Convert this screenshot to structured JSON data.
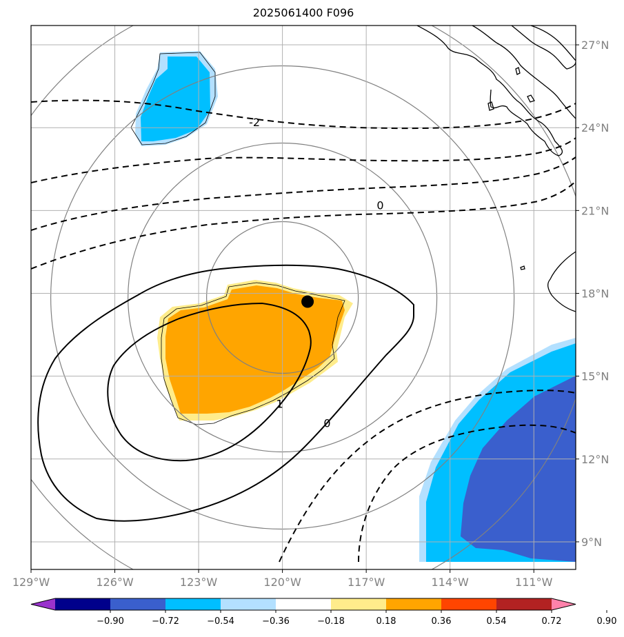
{
  "title": "2025061400 F096",
  "colors": {
    "light_blue": "#b3e0ff",
    "cyan": "#00bfff",
    "royal_blue": "#3a5fcd",
    "light_yellow": "#ffec8b",
    "orange": "#ffa500",
    "range_ring": "#808080",
    "grid": "#b0b0b0",
    "coast": "#000000"
  },
  "map": {
    "lon_range": [
      -129,
      -109.5
    ],
    "lat_range": [
      8,
      27.7
    ],
    "lon_ticks": [
      {
        "value": -129,
        "label": "129°W"
      },
      {
        "value": -126,
        "label": "126°W"
      },
      {
        "value": -123,
        "label": "123°W"
      },
      {
        "value": -120,
        "label": "120°W"
      },
      {
        "value": -117,
        "label": "117°W"
      },
      {
        "value": -114,
        "label": "114°W"
      },
      {
        "value": -111,
        "label": "111°W"
      }
    ],
    "lat_ticks": [
      {
        "value": 9,
        "label": "9°N"
      },
      {
        "value": 12,
        "label": "12°N"
      },
      {
        "value": 15,
        "label": "15°N"
      },
      {
        "value": 18,
        "label": "18°N"
      },
      {
        "value": 21,
        "label": "21°N"
      },
      {
        "value": 24,
        "label": "24°N"
      },
      {
        "value": 27,
        "label": "27°N"
      }
    ],
    "storm_center": {
      "lon": -119.1,
      "lat": 17.7
    },
    "contour_labels": [
      {
        "text": "-2",
        "lon": -121.0,
        "lat": 24.2
      },
      {
        "text": "0",
        "lon": -116.5,
        "lat": 21.2
      },
      {
        "text": "1",
        "lon": -120.1,
        "lat": 14.0
      },
      {
        "text": "0",
        "lon": -118.4,
        "lat": 13.3
      }
    ]
  },
  "colorbar": {
    "colors": [
      "#9932cc",
      "#00008b",
      "#3a5fcd",
      "#00bfff",
      "#b3e0ff",
      "#ffffff",
      "#ffec8b",
      "#ffa500",
      "#ff4500",
      "#b22222",
      "#ff82ab"
    ],
    "labels": [
      "−0.90",
      "−0.72",
      "−0.54",
      "−0.36",
      "−0.18",
      "0.18",
      "0.36",
      "0.54",
      "0.72",
      "0.90"
    ]
  }
}
